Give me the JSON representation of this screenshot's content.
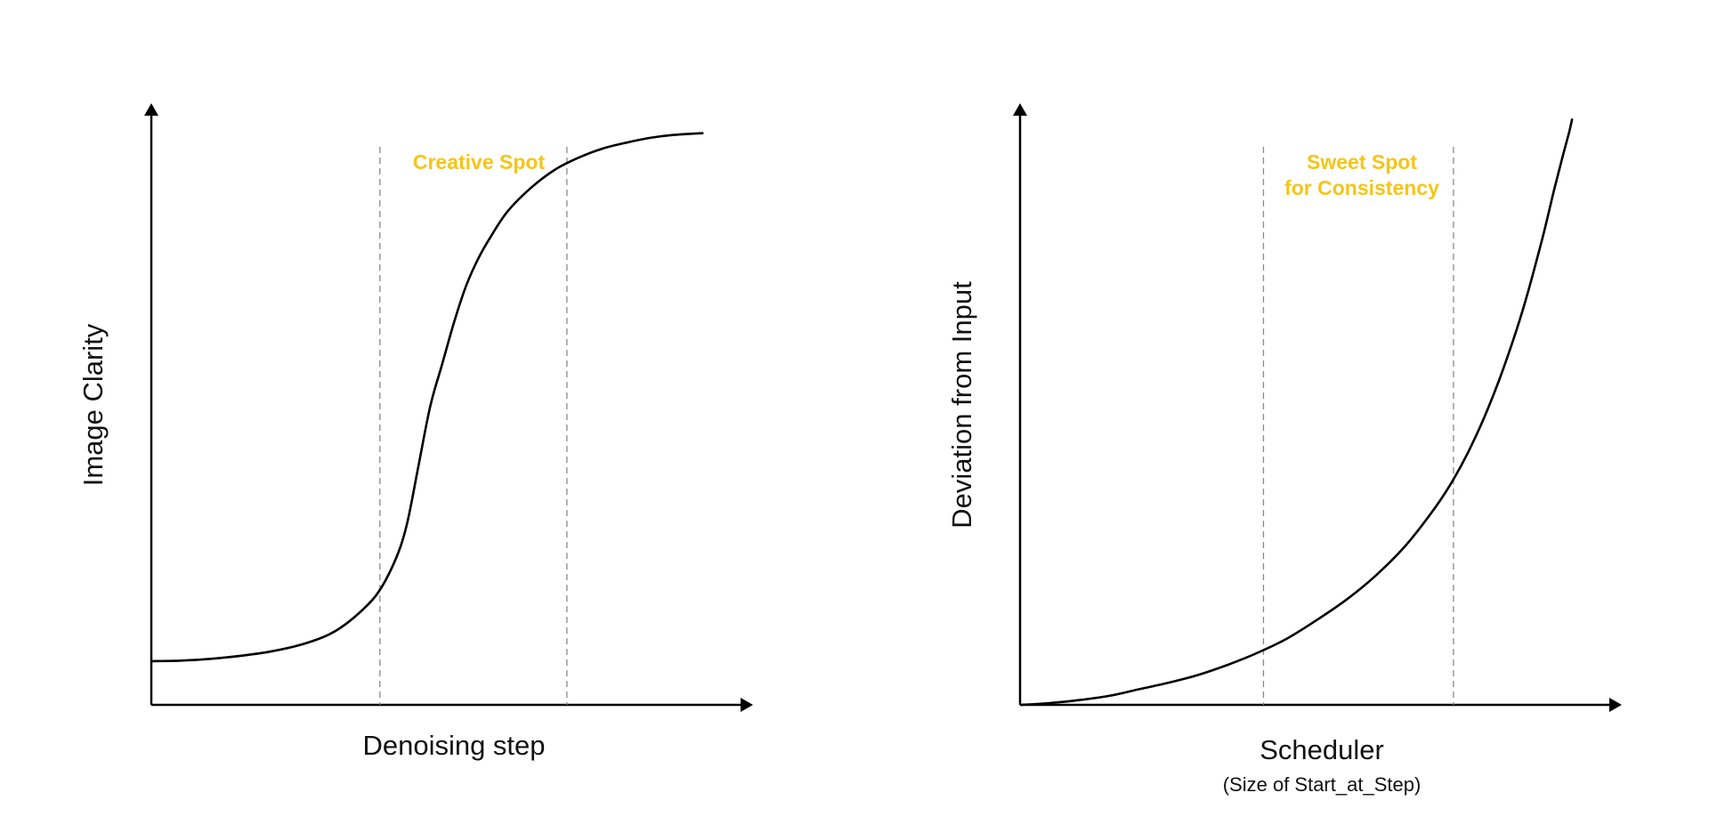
{
  "colors": {
    "highlight": "#F5C518",
    "curve": "#000000",
    "guide": "#8A8A8A"
  },
  "chart_data": [
    {
      "type": "line",
      "xlabel": "Denoising step",
      "ylabel": "Image Clarity",
      "xlim": [
        0,
        100
      ],
      "ylim": [
        0,
        100
      ],
      "grid": false,
      "ticks": false,
      "series": [
        {
          "x": [
            0,
            5,
            10,
            15,
            20,
            25,
            30,
            34,
            38,
            41,
            43,
            45,
            47,
            49,
            51,
            53,
            55,
            57,
            60,
            64,
            68,
            72,
            76,
            80,
            84,
            88,
            93
          ],
          "y": [
            7.3,
            7.4,
            7.7,
            8.2,
            8.9,
            10,
            11.8,
            14.5,
            18.5,
            24,
            30,
            40,
            50,
            57,
            64,
            70,
            74.5,
            78,
            82.5,
            86.5,
            89.5,
            91.5,
            93,
            94,
            94.8,
            95.3,
            95.6
          ]
        }
      ],
      "highlight_region": {
        "label": "Creative Spot",
        "x_start": 38.5,
        "x_end": 70
      }
    },
    {
      "type": "line",
      "xlabel": "Scheduler",
      "xsublabel": "(Size of Start_at_Step)",
      "ylabel": "Deviation from Input",
      "xlim": [
        0,
        100
      ],
      "ylim": [
        0,
        100
      ],
      "grid": false,
      "ticks": false,
      "series": [
        {
          "x": [
            0,
            5,
            10,
            15,
            20,
            25,
            30,
            35,
            40,
            45,
            50,
            55,
            60,
            65,
            70,
            73,
            76,
            79,
            82,
            85,
            88,
            90,
            91.5,
            92.5,
            93
          ],
          "y": [
            0,
            0.3,
            0.8,
            1.5,
            2.6,
            3.7,
            5,
            6.7,
            8.7,
            11.1,
            14.2,
            17.6,
            21.7,
            26.7,
            33.1,
            37.7,
            43.3,
            50,
            57.9,
            67.1,
            78.1,
            86.3,
            92.1,
            95.8,
            98
          ]
        }
      ],
      "highlight_region": {
        "label_lines": [
          "Sweet Spot",
          "for Consistency"
        ],
        "x_start": 41,
        "x_end": 73
      }
    }
  ]
}
